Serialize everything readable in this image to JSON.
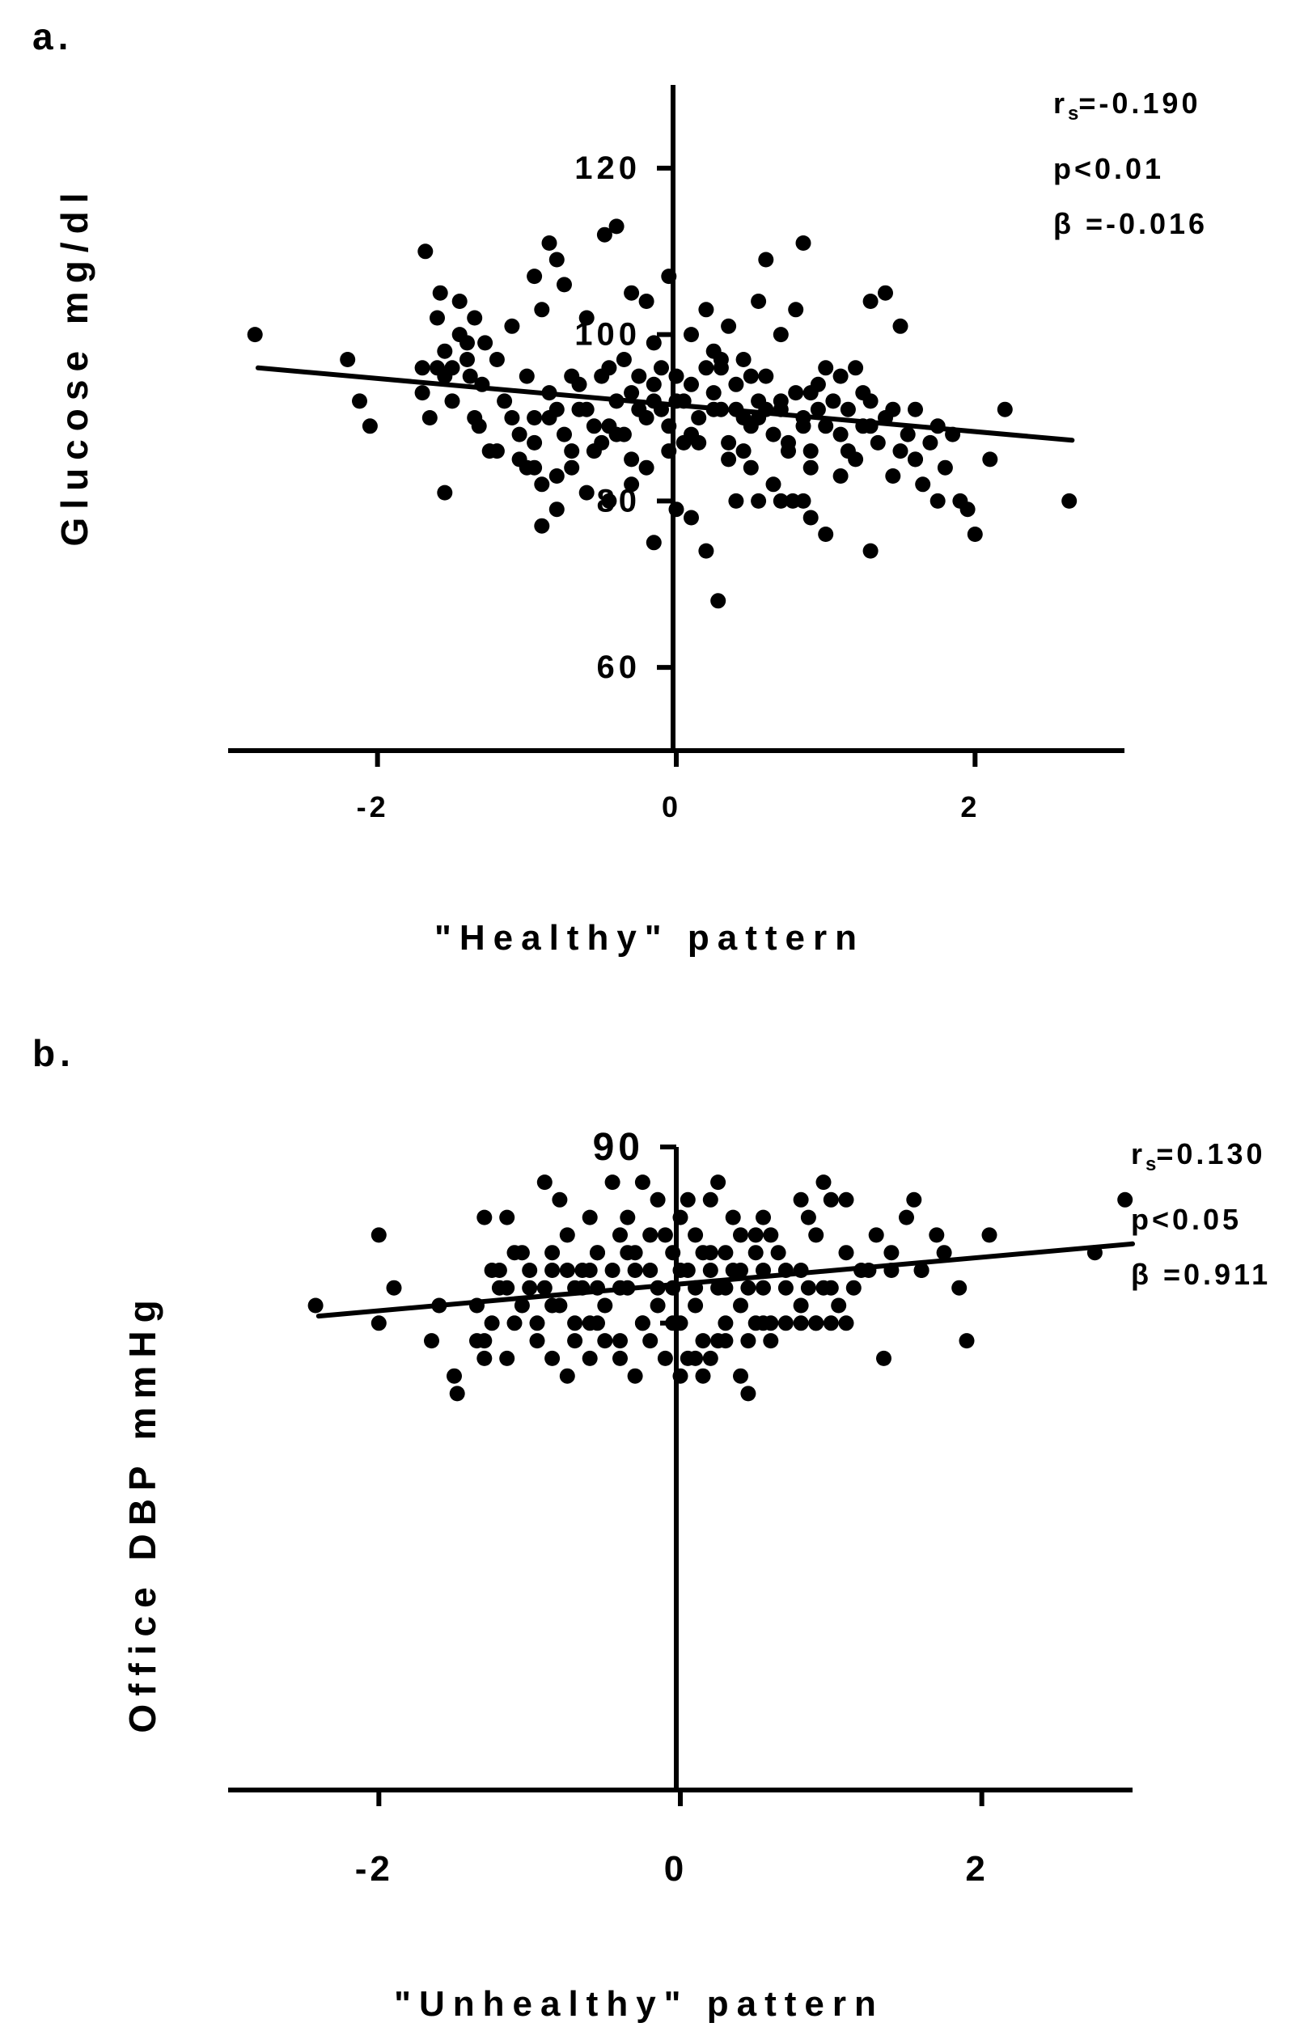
{
  "chart_data": [
    {
      "type": "scatter",
      "panel_label": "a.",
      "title": "",
      "xlabel": "\"Healthy\" pattern",
      "ylabel": "Glucose mg/dl",
      "xlim": [
        -3,
        3
      ],
      "ylim": [
        50,
        130
      ],
      "xticks": [
        -2,
        0,
        2
      ],
      "yticks": [
        60,
        80,
        100,
        120
      ],
      "grid": false,
      "stats": {
        "rs_symbol": "r",
        "rs_sub": "s",
        "rs": "=-0.190",
        "p": "p<0.01",
        "beta": "β =-0.016"
      },
      "fit_line": {
        "x": [
          -2.8,
          2.65
        ],
        "y": [
          96.0,
          87.3
        ]
      },
      "points": [
        [
          -2.82,
          100
        ],
        [
          -2.2,
          97
        ],
        [
          -2.12,
          92
        ],
        [
          -2.05,
          89
        ],
        [
          -1.7,
          96
        ],
        [
          -1.7,
          93
        ],
        [
          -1.65,
          90
        ],
        [
          -1.6,
          102
        ],
        [
          -1.55,
          98
        ],
        [
          -1.55,
          95
        ],
        [
          -1.5,
          96
        ],
        [
          -1.45,
          104
        ],
        [
          -1.45,
          100
        ],
        [
          -1.4,
          99
        ],
        [
          -1.35,
          102
        ],
        [
          -1.32,
          89
        ],
        [
          -1.3,
          94
        ],
        [
          -1.25,
          86
        ],
        [
          -1.2,
          86
        ],
        [
          -1.15,
          92
        ],
        [
          -1.1,
          90
        ],
        [
          -1.05,
          85
        ],
        [
          -1.0,
          84
        ],
        [
          -0.95,
          87
        ],
        [
          -0.9,
          82
        ],
        [
          -0.85,
          90
        ],
        [
          -0.8,
          83
        ],
        [
          -0.75,
          88
        ],
        [
          -0.7,
          86
        ],
        [
          -0.65,
          94
        ],
        [
          -0.6,
          91
        ],
        [
          -0.55,
          89
        ],
        [
          -0.5,
          87
        ],
        [
          -0.45,
          96
        ],
        [
          -0.4,
          92
        ],
        [
          -0.35,
          88
        ],
        [
          -0.3,
          93
        ],
        [
          -0.25,
          95
        ],
        [
          -0.2,
          90
        ],
        [
          -0.15,
          94
        ],
        [
          -0.1,
          91
        ],
        [
          -0.05,
          89
        ],
        [
          0.0,
          95
        ],
        [
          0.05,
          92
        ],
        [
          0.1,
          88
        ],
        [
          0.15,
          90
        ],
        [
          0.2,
          96
        ],
        [
          0.25,
          93
        ],
        [
          0.3,
          91
        ],
        [
          0.35,
          87
        ],
        [
          0.4,
          94
        ],
        [
          0.45,
          90
        ],
        [
          0.5,
          89
        ],
        [
          0.55,
          92
        ],
        [
          0.6,
          95
        ],
        [
          0.65,
          88
        ],
        [
          0.7,
          91
        ],
        [
          0.75,
          87
        ],
        [
          0.8,
          93
        ],
        [
          0.85,
          90
        ],
        [
          0.9,
          86
        ],
        [
          0.95,
          94
        ],
        [
          1.0,
          89
        ],
        [
          1.05,
          92
        ],
        [
          1.1,
          88
        ],
        [
          1.15,
          91
        ],
        [
          1.2,
          85
        ],
        [
          1.25,
          93
        ],
        [
          1.3,
          89
        ],
        [
          1.35,
          87
        ],
        [
          1.4,
          90
        ],
        [
          1.45,
          83
        ],
        [
          1.5,
          86
        ],
        [
          1.55,
          88
        ],
        [
          1.6,
          85
        ],
        [
          1.65,
          82
        ],
        [
          1.7,
          87
        ],
        [
          1.8,
          84
        ],
        [
          1.9,
          80
        ],
        [
          1.95,
          79
        ],
        [
          2.0,
          76
        ],
        [
          2.1,
          85
        ],
        [
          2.2,
          91
        ],
        [
          2.63,
          80
        ],
        [
          -1.68,
          110
        ],
        [
          -1.58,
          105
        ],
        [
          -1.5,
          92
        ],
        [
          -1.4,
          97
        ],
        [
          -1.38,
          95
        ],
        [
          -1.28,
          99
        ],
        [
          -1.1,
          101
        ],
        [
          -0.95,
          107
        ],
        [
          -0.9,
          103
        ],
        [
          -0.85,
          111
        ],
        [
          -0.8,
          109
        ],
        [
          -0.75,
          106
        ],
        [
          -0.6,
          102
        ],
        [
          -0.48,
          112
        ],
        [
          -0.4,
          113
        ],
        [
          -0.3,
          105
        ],
        [
          -0.2,
          104
        ],
        [
          -0.05,
          107
        ],
        [
          0.1,
          100
        ],
        [
          0.2,
          103
        ],
        [
          0.25,
          98
        ],
        [
          0.35,
          101
        ],
        [
          0.45,
          97
        ],
        [
          0.55,
          104
        ],
        [
          0.6,
          109
        ],
        [
          0.7,
          100
        ],
        [
          0.8,
          103
        ],
        [
          0.85,
          111
        ],
        [
          1.0,
          96
        ],
        [
          1.3,
          104
        ],
        [
          1.4,
          105
        ],
        [
          1.5,
          101
        ],
        [
          1.2,
          96
        ],
        [
          0.3,
          97
        ],
        [
          -0.15,
          99
        ],
        [
          -0.9,
          77
        ],
        [
          -0.8,
          79
        ],
        [
          -0.6,
          81
        ],
        [
          -0.45,
          80
        ],
        [
          -0.3,
          82
        ],
        [
          -0.15,
          75
        ],
        [
          0.0,
          79
        ],
        [
          0.1,
          78
        ],
        [
          0.2,
          74
        ],
        [
          0.28,
          68
        ],
        [
          0.4,
          80
        ],
        [
          0.55,
          80
        ],
        [
          0.7,
          80
        ],
        [
          0.78,
          80
        ],
        [
          0.85,
          80
        ],
        [
          0.9,
          78
        ],
        [
          1.0,
          76
        ],
        [
          1.3,
          74
        ],
        [
          1.6,
          85
        ],
        [
          1.75,
          80
        ],
        [
          -1.55,
          81
        ],
        [
          -0.95,
          84
        ],
        [
          -0.7,
          84
        ],
        [
          -0.3,
          85
        ],
        [
          0.5,
          84
        ],
        [
          0.9,
          84
        ],
        [
          1.1,
          83
        ],
        [
          -0.2,
          84
        ],
        [
          0.65,
          82
        ],
        [
          0.35,
          85
        ],
        [
          -0.55,
          86
        ],
        [
          -0.05,
          86
        ],
        [
          0.15,
          87
        ],
        [
          0.45,
          86
        ],
        [
          0.75,
          86
        ],
        [
          1.15,
          86
        ],
        [
          -1.05,
          88
        ],
        [
          -0.4,
          88
        ],
        [
          0.05,
          87
        ],
        [
          -1.6,
          96
        ],
        [
          -1.2,
          97
        ],
        [
          -1.0,
          95
        ],
        [
          -0.85,
          93
        ],
        [
          -0.7,
          95
        ],
        [
          -0.5,
          95
        ],
        [
          -0.35,
          97
        ],
        [
          -0.1,
          96
        ],
        [
          0.1,
          94
        ],
        [
          0.3,
          96
        ],
        [
          0.5,
          95
        ],
        [
          0.7,
          92
        ],
        [
          0.9,
          93
        ],
        [
          1.1,
          95
        ],
        [
          1.3,
          92
        ],
        [
          1.45,
          91
        ],
        [
          1.6,
          91
        ],
        [
          1.75,
          89
        ],
        [
          1.85,
          88
        ],
        [
          -0.65,
          91
        ],
        [
          -0.25,
          91
        ],
        [
          0.25,
          91
        ],
        [
          0.6,
          91
        ],
        [
          -1.35,
          90
        ],
        [
          -0.95,
          90
        ],
        [
          0.95,
          91
        ],
        [
          0.4,
          91
        ],
        [
          -0.45,
          89
        ],
        [
          0.0,
          92
        ],
        [
          0.55,
          90
        ],
        [
          0.85,
          89
        ],
        [
          1.25,
          89
        ],
        [
          -0.8,
          91
        ],
        [
          -0.15,
          92
        ]
      ]
    },
    {
      "type": "scatter",
      "panel_label": "b.",
      "title": "",
      "xlabel": "\"Unhealthy\" pattern",
      "ylabel": "Office DBP mmHg",
      "xlim": [
        -3,
        3
      ],
      "ylim": [
        53.5,
        90
      ],
      "xticks": [
        -2,
        0,
        2
      ],
      "yticks": [
        80,
        90
      ],
      "ytick_labels_visible": [
        "90"
      ],
      "grid": false,
      "stats": {
        "rs_symbol": "r",
        "rs_sub": "s",
        "rs": "=0.130",
        "p": "p<0.05",
        "beta": "β =0.911"
      },
      "fit_line": {
        "x": [
          -2.4,
          3.0
        ],
        "y": [
          80.4,
          84.5
        ]
      },
      "points": [
        [
          -2.42,
          81
        ],
        [
          -2.0,
          80
        ],
        [
          -1.65,
          79
        ],
        [
          -1.6,
          81
        ],
        [
          -1.5,
          77
        ],
        [
          -1.48,
          76
        ],
        [
          -1.35,
          81
        ],
        [
          -1.3,
          78
        ],
        [
          -1.25,
          80
        ],
        [
          -1.2,
          83
        ],
        [
          -1.15,
          82
        ],
        [
          -1.1,
          84
        ],
        [
          -1.05,
          81
        ],
        [
          -1.0,
          83
        ],
        [
          -0.95,
          80
        ],
        [
          -0.9,
          82
        ],
        [
          -0.85,
          84
        ],
        [
          -0.8,
          81
        ],
        [
          -0.75,
          83
        ],
        [
          -0.7,
          79
        ],
        [
          -0.65,
          82
        ],
        [
          -0.6,
          80
        ],
        [
          -0.55,
          84
        ],
        [
          -0.5,
          81
        ],
        [
          -0.45,
          83
        ],
        [
          -0.4,
          79
        ],
        [
          -0.35,
          82
        ],
        [
          -0.3,
          84
        ],
        [
          -0.25,
          80
        ],
        [
          -0.2,
          83
        ],
        [
          -0.15,
          81
        ],
        [
          -0.1,
          85
        ],
        [
          -0.05,
          82
        ],
        [
          0.0,
          80
        ],
        [
          0.05,
          83
        ],
        [
          0.1,
          81
        ],
        [
          0.15,
          79
        ],
        [
          0.2,
          84
        ],
        [
          0.25,
          82
        ],
        [
          0.3,
          80
        ],
        [
          0.35,
          83
        ],
        [
          0.4,
          81
        ],
        [
          0.45,
          79
        ],
        [
          0.5,
          84
        ],
        [
          0.55,
          82
        ],
        [
          0.6,
          80
        ],
        [
          0.7,
          83
        ],
        [
          0.8,
          81
        ],
        [
          0.9,
          80
        ],
        [
          1.0,
          82
        ],
        [
          1.1,
          84
        ],
        [
          1.2,
          83
        ],
        [
          1.3,
          85
        ],
        [
          1.4,
          84
        ],
        [
          1.5,
          86
        ],
        [
          1.6,
          83
        ],
        [
          1.7,
          85
        ],
        [
          1.75,
          84
        ],
        [
          1.85,
          82
        ],
        [
          1.9,
          79
        ],
        [
          2.05,
          85
        ],
        [
          2.75,
          84
        ],
        [
          2.95,
          87
        ],
        [
          -2.0,
          85
        ],
        [
          -1.9,
          82
        ],
        [
          -1.3,
          86
        ],
        [
          -1.15,
          86
        ],
        [
          -1.05,
          84
        ],
        [
          -0.9,
          88
        ],
        [
          -0.8,
          87
        ],
        [
          -0.75,
          85
        ],
        [
          -0.6,
          86
        ],
        [
          -0.45,
          88
        ],
        [
          -0.35,
          86
        ],
        [
          -0.25,
          88
        ],
        [
          -0.15,
          87
        ],
        [
          0.0,
          86
        ],
        [
          0.05,
          87
        ],
        [
          0.2,
          87
        ],
        [
          0.25,
          88
        ],
        [
          0.35,
          86
        ],
        [
          0.4,
          85
        ],
        [
          0.55,
          86
        ],
        [
          0.6,
          85
        ],
        [
          0.65,
          84
        ],
        [
          0.8,
          87
        ],
        [
          0.85,
          86
        ],
        [
          0.9,
          85
        ],
        [
          0.95,
          88
        ],
        [
          1.0,
          87
        ],
        [
          1.1,
          87
        ],
        [
          1.55,
          87
        ],
        [
          -0.55,
          84
        ],
        [
          -0.2,
          85
        ],
        [
          0.1,
          85
        ],
        [
          -0.4,
          85
        ],
        [
          0.5,
          85
        ],
        [
          0.15,
          84
        ],
        [
          -0.65,
          83
        ],
        [
          -1.35,
          79
        ],
        [
          -1.3,
          79
        ],
        [
          -1.15,
          78
        ],
        [
          -0.95,
          79
        ],
        [
          -0.85,
          78
        ],
        [
          -0.75,
          77
        ],
        [
          -0.6,
          78
        ],
        [
          -0.5,
          79
        ],
        [
          -0.4,
          78
        ],
        [
          -0.3,
          77
        ],
        [
          -0.2,
          79
        ],
        [
          -0.1,
          78
        ],
        [
          0.0,
          77
        ],
        [
          0.05,
          78
        ],
        [
          0.1,
          78
        ],
        [
          0.15,
          77
        ],
        [
          0.2,
          78
        ],
        [
          0.25,
          79
        ],
        [
          0.4,
          77
        ],
        [
          0.45,
          76
        ],
        [
          0.5,
          80
        ],
        [
          0.6,
          79
        ],
        [
          0.7,
          80
        ],
        [
          0.8,
          80
        ],
        [
          0.9,
          80
        ],
        [
          1.0,
          80
        ],
        [
          1.1,
          80
        ],
        [
          1.35,
          78
        ],
        [
          -1.1,
          80
        ],
        [
          -0.55,
          80
        ],
        [
          0.3,
          79
        ],
        [
          -0.7,
          80
        ],
        [
          -0.05,
          80
        ],
        [
          0.55,
          80
        ],
        [
          -0.25,
          80
        ],
        [
          -1.25,
          83
        ],
        [
          -1.0,
          82
        ],
        [
          -0.85,
          81
        ],
        [
          -0.7,
          82
        ],
        [
          -0.55,
          82
        ],
        [
          -0.4,
          82
        ],
        [
          -0.3,
          83
        ],
        [
          -0.15,
          82
        ],
        [
          0.0,
          83
        ],
        [
          0.1,
          82
        ],
        [
          0.2,
          83
        ],
        [
          0.3,
          82
        ],
        [
          0.4,
          83
        ],
        [
          0.55,
          83
        ],
        [
          0.7,
          82
        ],
        [
          0.8,
          83
        ],
        [
          0.95,
          82
        ],
        [
          1.05,
          81
        ],
        [
          1.15,
          82
        ],
        [
          1.25,
          83
        ],
        [
          1.4,
          83
        ],
        [
          1.6,
          83
        ],
        [
          -0.05,
          84
        ],
        [
          -0.35,
          84
        ],
        [
          0.3,
          84
        ],
        [
          -0.85,
          83
        ],
        [
          -0.6,
          83
        ],
        [
          0.45,
          82
        ],
        [
          -1.2,
          82
        ],
        [
          0.85,
          82
        ]
      ]
    }
  ]
}
